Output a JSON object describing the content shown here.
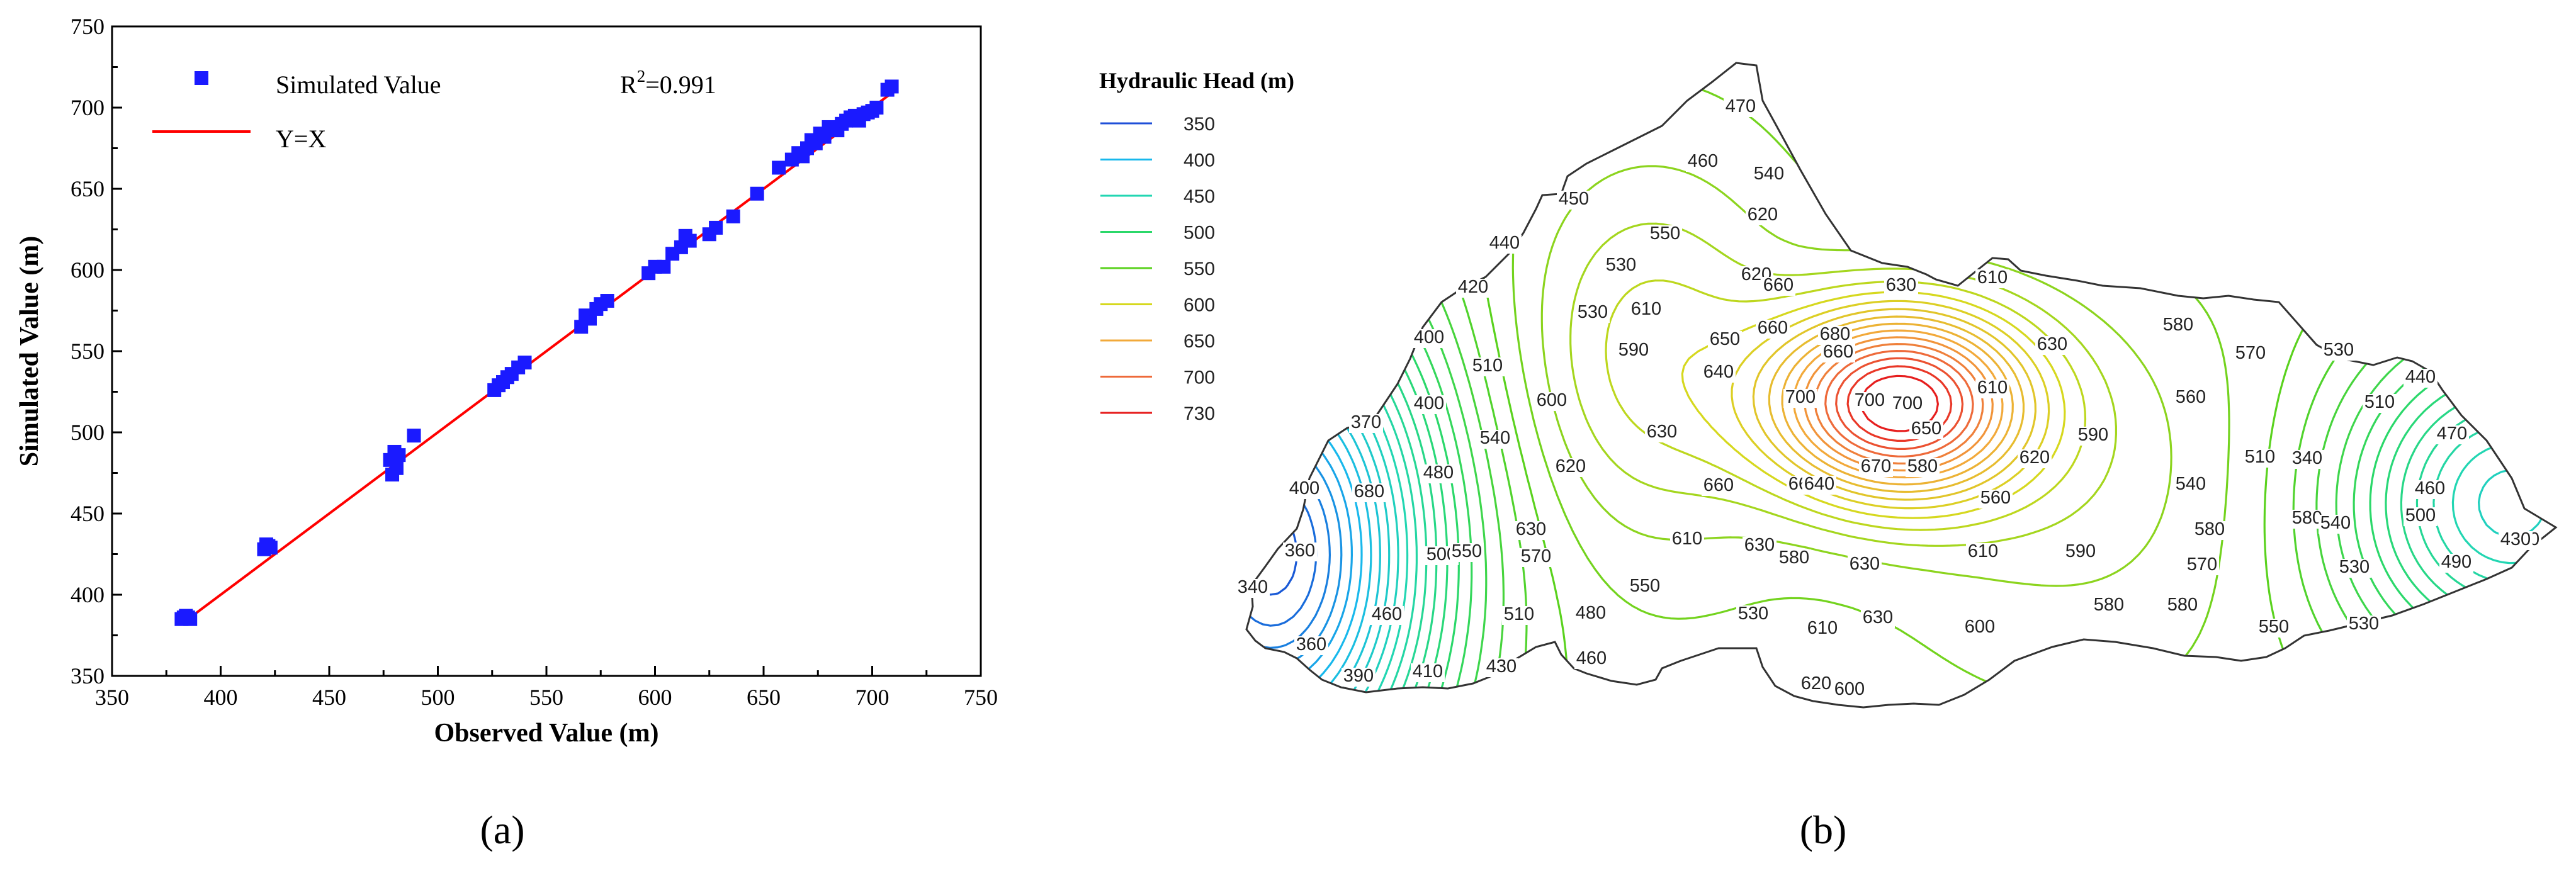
{
  "chart_data": [
    {
      "type": "scatter",
      "xlabel": "Observed Value (m)",
      "ylabel": "Simulated Value (m)",
      "xlim": [
        350,
        750
      ],
      "ylim": [
        350,
        750
      ],
      "xticks": [
        "350",
        "400",
        "450",
        "500",
        "550",
        "600",
        "650",
        "700",
        "750"
      ],
      "yticks": [
        "350",
        "400",
        "450",
        "500",
        "550",
        "600",
        "650",
        "700",
        "750"
      ],
      "grid": false,
      "legend_position": "top-left",
      "annotation": {
        "prefix": "R",
        "sup": "2",
        "suffix": "=0.991"
      },
      "panel_label": "(a)",
      "series": [
        {
          "name": "Simulated Value",
          "kind": "scatter",
          "color": "#1a1aff",
          "x": [
            382,
            383,
            384,
            385,
            386,
            420,
            421,
            422,
            423,
            478,
            479,
            480,
            481,
            482,
            489,
            526,
            528,
            530,
            532,
            534,
            537,
            540,
            566,
            568,
            570,
            573,
            575,
            578,
            597,
            600,
            604,
            608,
            612,
            614,
            616,
            625,
            628,
            636,
            647,
            657,
            663,
            666,
            668,
            670,
            672,
            674,
            676,
            678,
            680,
            684,
            686,
            688,
            690,
            692,
            694,
            696,
            698,
            700,
            702,
            707,
            709
          ],
          "y": [
            385,
            386,
            387,
            386,
            385,
            428,
            431,
            430,
            429,
            483,
            474,
            488,
            478,
            486,
            498,
            526,
            529,
            531,
            534,
            536,
            540,
            543,
            565,
            572,
            570,
            576,
            579,
            581,
            598,
            602,
            602,
            610,
            614,
            621,
            618,
            622,
            626,
            633,
            647,
            663,
            668,
            672,
            670,
            675,
            680,
            678,
            684,
            682,
            688,
            686,
            690,
            692,
            694,
            695,
            692,
            696,
            697,
            698,
            700,
            711,
            713
          ]
        },
        {
          "name": "Y=X",
          "kind": "line",
          "color": "#ff0000",
          "x": [
            383,
            709
          ],
          "y": [
            383,
            709
          ]
        }
      ]
    },
    {
      "type": "contour",
      "title": "Hydraulic Head (m)",
      "panel_label": "(b)",
      "legend": [
        {
          "label": "350",
          "color": "#1f4fd8"
        },
        {
          "label": "400",
          "color": "#18b8ec"
        },
        {
          "label": "450",
          "color": "#22d6b2"
        },
        {
          "label": "500",
          "color": "#2bd86a"
        },
        {
          "label": "550",
          "color": "#5ad21e"
        },
        {
          "label": "600",
          "color": "#d6d81e"
        },
        {
          "label": "650",
          "color": "#f2a93a"
        },
        {
          "label": "700",
          "color": "#ee6a3a"
        },
        {
          "label": "730",
          "color": "#e61e1e"
        }
      ],
      "contour_labels": [
        "470",
        "460",
        "540",
        "450",
        "550",
        "620",
        "440",
        "530",
        "620",
        "660",
        "630",
        "610",
        "420",
        "530",
        "610",
        "660",
        "680",
        "400",
        "510",
        "590",
        "650",
        "660",
        "630",
        "580",
        "570",
        "530",
        "440",
        "700",
        "700",
        "640",
        "700",
        "510",
        "400",
        "540",
        "600",
        "610",
        "560",
        "470",
        "370",
        "630",
        "650",
        "590",
        "620",
        "480",
        "620",
        "660",
        "670",
        "580",
        "540",
        "510",
        "340",
        "400",
        "680",
        "660",
        "640",
        "560",
        "460",
        "580",
        "630",
        "610",
        "580",
        "500",
        "540",
        "360",
        "500",
        "550",
        "570",
        "630",
        "580",
        "610",
        "590",
        "570",
        "430",
        "340",
        "550",
        "630",
        "490",
        "530",
        "430",
        "460",
        "510",
        "480",
        "530",
        "610",
        "630",
        "580",
        "580",
        "600",
        "550",
        "530",
        "360",
        "390",
        "410",
        "430",
        "460",
        "620",
        "600"
      ]
    }
  ]
}
